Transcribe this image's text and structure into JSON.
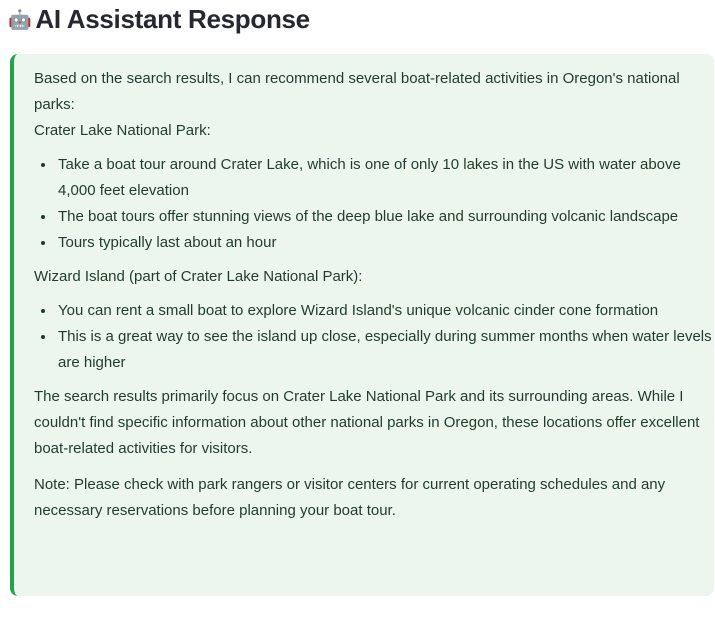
{
  "header": {
    "icon": "robot-icon",
    "title": "AI Assistant Response"
  },
  "colors": {
    "box_background": "#ecf6ec",
    "accent_border": "#21a34a"
  },
  "response": {
    "intro": "Based on the search results, I can recommend several boat-related activities in Oregon's national parks:",
    "section1_title": "Crater Lake National Park:",
    "section1_items": [
      "Take a boat tour around Crater Lake, which is one of only 10 lakes in the US with water above 4,000 feet elevation",
      "The boat tours offer stunning views of the deep blue lake and surrounding volcanic landscape",
      "Tours typically last about an hour"
    ],
    "section2_title": "Wizard Island (part of Crater Lake National Park):",
    "section2_items": [
      "You can rent a small boat to explore Wizard Island's unique volcanic cinder cone formation",
      "This is a great way to see the island up close, especially during summer months when water levels are higher"
    ],
    "summary": "The search results primarily focus on Crater Lake National Park and its surrounding areas. While I couldn't find specific information about other national parks in Oregon, these locations offer excellent boat-related activities for visitors.",
    "note": "Note: Please check with park rangers or visitor centers for current operating schedules and any necessary reservations before planning your boat tour."
  }
}
